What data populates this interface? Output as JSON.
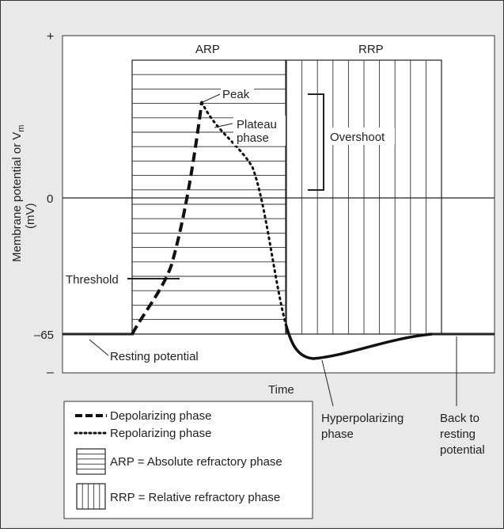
{
  "axes": {
    "y_title_line1": "Membrane potential or V",
    "y_title_sub": "m",
    "y_title_line2": "(mV)",
    "x_title": "Time",
    "y_ticks": {
      "plus": "+",
      "zero": "0",
      "minus65": "–65",
      "minus": "–"
    }
  },
  "regions": {
    "arp": "ARP",
    "rrp": "RRP"
  },
  "labels": {
    "peak": "Peak",
    "plateau_line1": "Plateau",
    "plateau_line2": "phase",
    "overshoot": "Overshoot",
    "threshold": "Threshold",
    "resting_potential": "Resting potential",
    "hyper_line1": "Hyperpolarizing",
    "hyper_line2": "phase",
    "back_line1": "Back to",
    "back_line2": "resting",
    "back_line3": "potential"
  },
  "legend": {
    "depolarizing": "Depolarizing phase",
    "repolarizing": "Repolarizing phase",
    "arp": "ARP = Absolute refractory phase",
    "rrp": "RRP = Relative refractory phase"
  }
}
